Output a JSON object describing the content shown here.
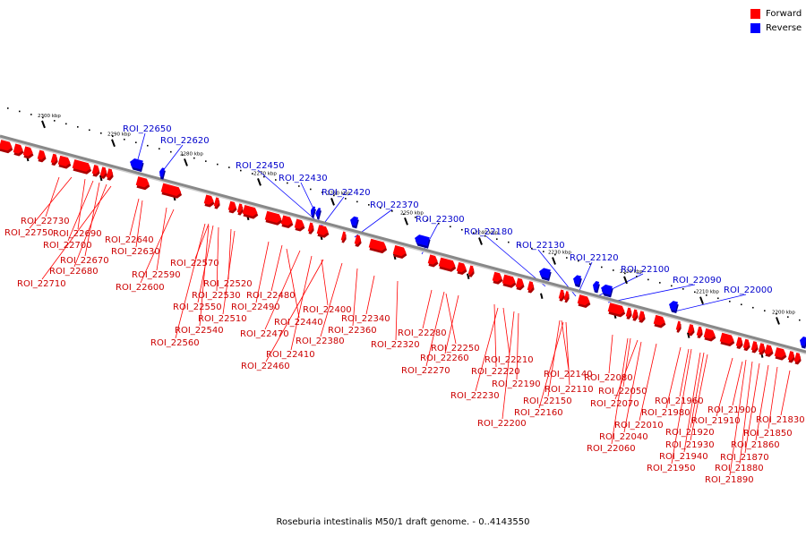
{
  "caption": "Roseburia intestinalis M50/1 draft genome. - 0..4143550",
  "legend": [
    {
      "label": "Forward",
      "color": "#ff0000"
    },
    {
      "label": "Reverse",
      "color": "#0000ff"
    }
  ],
  "colors": {
    "forward": "#ff0000",
    "reverse": "#0000ff",
    "backbone": "#888888",
    "forward_label": "#cc0000",
    "reverse_label": "#0000cc"
  },
  "scale_labels": [
    "2300 kbp",
    "2290 kbp",
    "2280 kbp",
    "2270 kbp",
    "2260 kbp",
    "2250 kbp",
    "2240 kbp",
    "2230 kbp",
    "2220 kbp",
    "2210 kbp",
    "2200 kbp"
  ],
  "reverse_genes": [
    "ROI_22650",
    "ROI_22620",
    "ROI_22450",
    "ROI_22430",
    "ROI_22420",
    "ROI_22370",
    "ROI_22300",
    "ROI_22180",
    "ROI_22130",
    "ROI_22120",
    "ROI_22100",
    "ROI_22090",
    "ROI_22000"
  ],
  "forward_genes": [
    "ROI_22730",
    "ROI_22750",
    "ROI_22690",
    "ROI_22700",
    "ROI_22670",
    "ROI_22680",
    "ROI_22710",
    "ROI_22640",
    "ROI_22630",
    "ROI_22590",
    "ROI_22600",
    "ROI_22570",
    "ROI_22520",
    "ROI_22530",
    "ROI_22550",
    "ROI_22510",
    "ROI_22540",
    "ROI_22560",
    "ROI_22480",
    "ROI_22490",
    "ROI_22440",
    "ROI_22470",
    "ROI_22410",
    "ROI_22460",
    "ROI_22400",
    "ROI_22380",
    "ROI_22360",
    "ROI_22340",
    "ROI_22320",
    "ROI_22280",
    "ROI_22250",
    "ROI_22260",
    "ROI_22270",
    "ROI_22210",
    "ROI_22220",
    "ROI_22190",
    "ROI_22230",
    "ROI_22200",
    "ROI_22140",
    "ROI_22110",
    "ROI_22150",
    "ROI_22160",
    "ROI_22080",
    "ROI_22050",
    "ROI_22070",
    "ROI_22040",
    "ROI_22060",
    "ROI_22010",
    "ROI_21960",
    "ROI_21980",
    "ROI_21920",
    "ROI_21930",
    "ROI_21940",
    "ROI_21950",
    "ROI_21900",
    "ROI_21910",
    "ROI_21830",
    "ROI_21850",
    "ROI_21860",
    "ROI_21870",
    "ROI_21880",
    "ROI_21890"
  ]
}
